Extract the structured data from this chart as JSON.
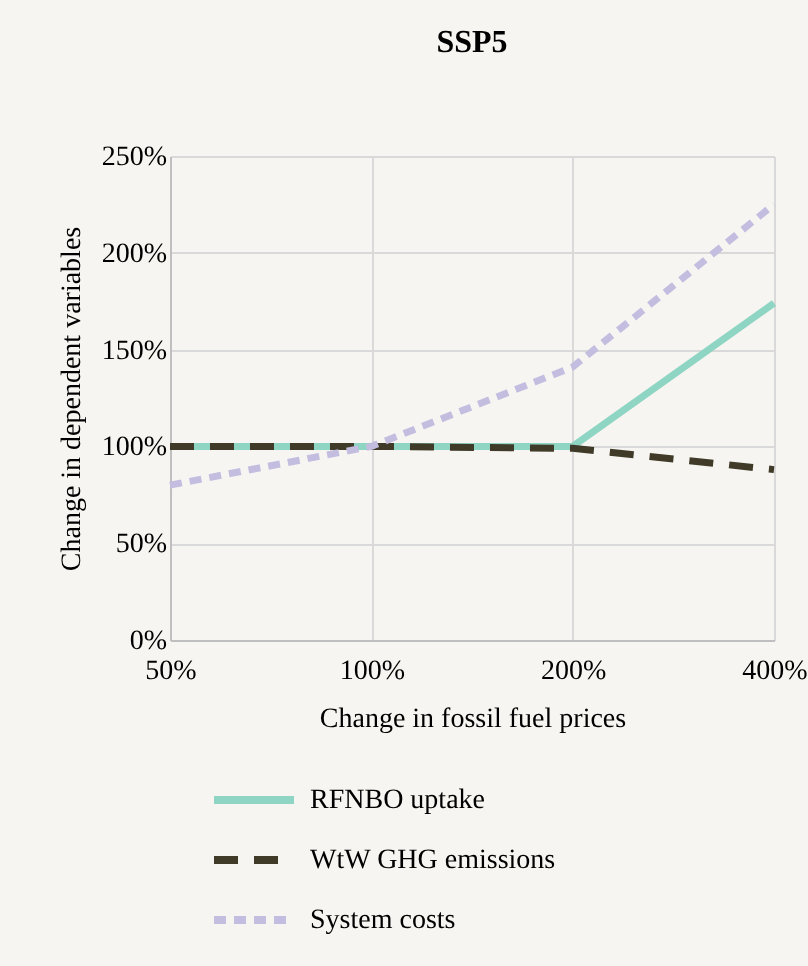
{
  "chart_data": {
    "type": "line",
    "title": "SSP5",
    "xlabel": "Change in fossil fuel prices",
    "ylabel": "Change in dependent variables",
    "categories": [
      "50%",
      "100%",
      "200%",
      "400%"
    ],
    "series": [
      {
        "name": "RFNBO uptake",
        "color": "#8fd5c3",
        "line_style": "solid",
        "values": [
          100,
          100,
          100,
          174
        ]
      },
      {
        "name": "WtW GHG emissions",
        "color": "#3f3b28",
        "line_style": "dashed",
        "values": [
          100,
          100,
          99,
          88
        ]
      },
      {
        "name": "System costs",
        "color": "#c3bde0",
        "line_style": "dotted",
        "values": [
          80,
          100,
          141,
          225
        ]
      }
    ],
    "ylim": [
      0,
      250
    ],
    "yticks": [
      {
        "value": 0,
        "label": "0%"
      },
      {
        "value": 50,
        "label": "50%"
      },
      {
        "value": 100,
        "label": "100%"
      },
      {
        "value": 150,
        "label": "150%"
      },
      {
        "value": 200,
        "label": "200%"
      },
      {
        "value": 250,
        "label": "250%"
      }
    ],
    "grid": true,
    "legend": "bottom"
  }
}
